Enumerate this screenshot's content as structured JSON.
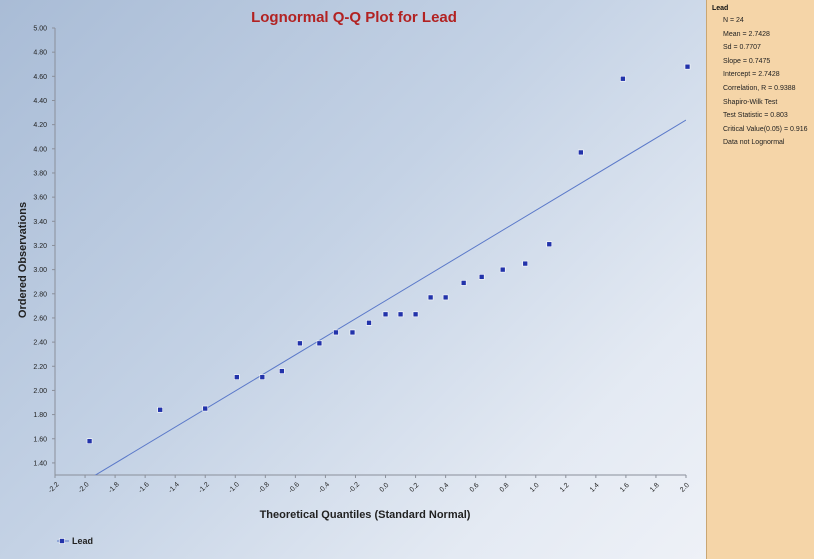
{
  "stats": {
    "header": "Lead",
    "lines": [
      "N = 24",
      "Mean = 2.7428",
      "Sd = 0.7707",
      "Slope = 0.7475",
      "Intercept = 2.7428",
      "Correlation, R = 0.9388",
      "Shapiro-Wilk Test",
      "Test Statistic = 0.803",
      "Critical Value(0.05) = 0.916",
      "Data not Lognormal"
    ]
  },
  "legend": {
    "label": "Lead"
  },
  "chart_data": {
    "type": "scatter",
    "title": "Lognormal Q-Q Plot for Lead",
    "xlabel": "Theoretical Quantiles (Standard Normal)",
    "ylabel": "Ordered Observations",
    "xlim": [
      -2.2,
      2.0
    ],
    "ylim": [
      1.3,
      5.0
    ],
    "x_ticks": [
      "-2.2",
      "-2.0",
      "-1.8",
      "-1.6",
      "-1.4",
      "-1.2",
      "-1.0",
      "-0.8",
      "-0.6",
      "-0.4",
      "-0.2",
      "0.0",
      "0.2",
      "0.4",
      "0.6",
      "0.8",
      "1.0",
      "1.2",
      "1.4",
      "1.6",
      "1.8",
      "2.0"
    ],
    "y_ticks": [
      "1.40",
      "1.60",
      "1.80",
      "2.00",
      "2.20",
      "2.40",
      "2.60",
      "2.80",
      "3.00",
      "3.20",
      "3.40",
      "3.60",
      "3.80",
      "4.00",
      "4.20",
      "4.40",
      "4.60",
      "4.80",
      "5.00"
    ],
    "series": [
      {
        "name": "Lead",
        "color": "#2233aa",
        "x": [
          -1.97,
          -1.5,
          -1.2,
          -0.99,
          -0.82,
          -0.69,
          -0.57,
          -0.44,
          -0.33,
          -0.22,
          -0.11,
          0.0,
          0.1,
          0.2,
          0.3,
          0.4,
          0.52,
          0.64,
          0.78,
          0.93,
          1.09,
          1.3,
          1.58,
          2.01
        ],
        "y": [
          1.58,
          1.84,
          1.85,
          2.11,
          2.11,
          2.16,
          2.39,
          2.39,
          2.48,
          2.48,
          2.56,
          2.63,
          2.63,
          2.63,
          2.77,
          2.77,
          2.89,
          2.94,
          3.0,
          3.05,
          3.21,
          3.97,
          4.58,
          4.68
        ]
      }
    ],
    "fit_line": {
      "slope": 0.7475,
      "intercept": 2.7428,
      "color": "#5b79c9"
    }
  }
}
